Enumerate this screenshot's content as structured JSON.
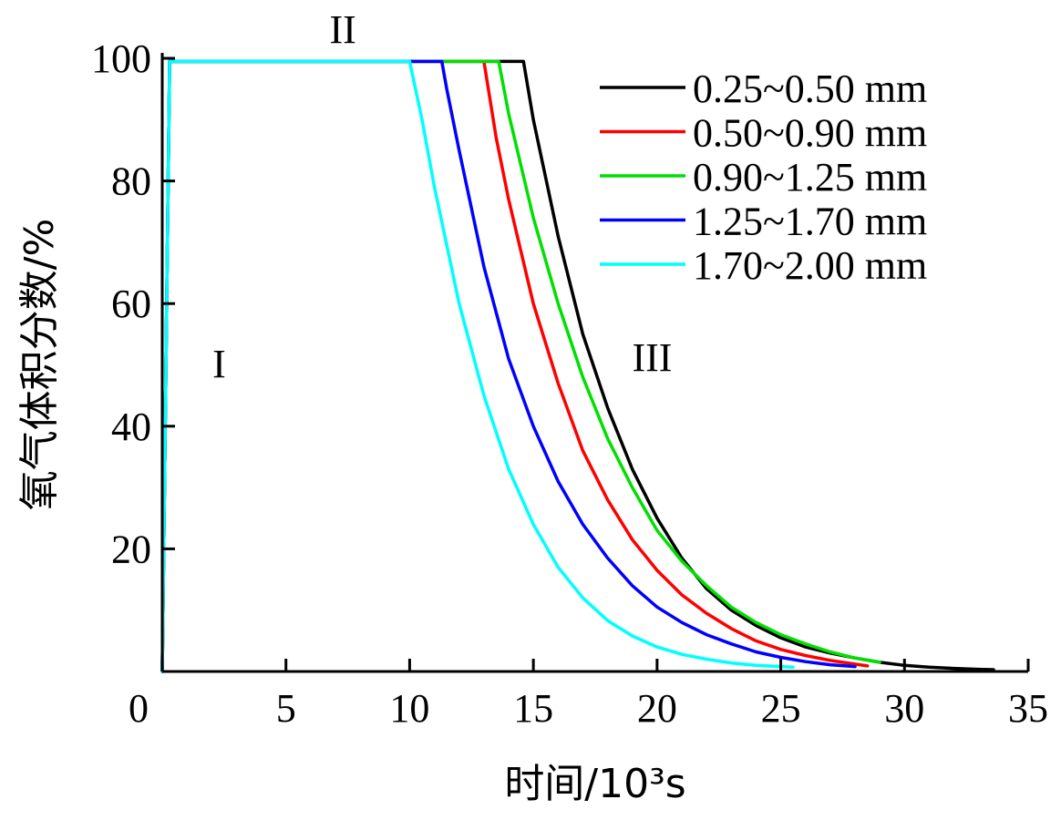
{
  "chart_data": {
    "type": "line",
    "xlabel": "时间/10³s",
    "ylabel": "氧气体积分数/%",
    "xlim": [
      0,
      35
    ],
    "ylim": [
      0,
      100
    ],
    "xticks": [
      0,
      5,
      10,
      15,
      20,
      25,
      30,
      35
    ],
    "yticks": [
      20,
      40,
      60,
      80,
      100
    ],
    "grid": false,
    "legend_position": "top-right",
    "annotations": [
      {
        "text": "I",
        "x": 2.3,
        "y": 48
      },
      {
        "text": "II",
        "x": 7.3,
        "y": 102.5
      },
      {
        "text": "III",
        "x": 19.8,
        "y": 49
      }
    ],
    "series": [
      {
        "name": "0.25~0.50 mm",
        "color": "#000000",
        "points": [
          [
            0,
            0
          ],
          [
            0.3,
            99.5
          ],
          [
            14.6,
            99.5
          ],
          [
            15,
            90
          ],
          [
            16,
            71
          ],
          [
            17,
            55
          ],
          [
            18,
            43
          ],
          [
            19,
            33
          ],
          [
            20,
            25
          ],
          [
            21,
            18.5
          ],
          [
            22,
            13.5
          ],
          [
            23,
            10
          ],
          [
            24,
            7.5
          ],
          [
            25,
            5.5
          ],
          [
            26,
            4
          ],
          [
            27,
            3
          ],
          [
            28,
            2.2
          ],
          [
            29,
            1.5
          ],
          [
            30,
            1
          ],
          [
            31,
            0.7
          ],
          [
            32,
            0.5
          ],
          [
            33,
            0.35
          ],
          [
            33.6,
            0.3
          ]
        ]
      },
      {
        "name": "0.50~0.90 mm",
        "color": "#ff0000",
        "points": [
          [
            0,
            0
          ],
          [
            0.3,
            99.5
          ],
          [
            13.0,
            99.5
          ],
          [
            13.5,
            87
          ],
          [
            14,
            77
          ],
          [
            15,
            60
          ],
          [
            16,
            47
          ],
          [
            17,
            36
          ],
          [
            18,
            28
          ],
          [
            19,
            21.5
          ],
          [
            20,
            16.5
          ],
          [
            21,
            12.5
          ],
          [
            22,
            9.5
          ],
          [
            23,
            7
          ],
          [
            24,
            5
          ],
          [
            25,
            3.6
          ],
          [
            26,
            2.6
          ],
          [
            27,
            1.8
          ],
          [
            28,
            1.2
          ],
          [
            28.5,
            0.9
          ]
        ]
      },
      {
        "name": "0.90~1.25 mm",
        "color": "#00e000",
        "points": [
          [
            0,
            0
          ],
          [
            0.3,
            99.5
          ],
          [
            13.6,
            99.5
          ],
          [
            14,
            91
          ],
          [
            15,
            74
          ],
          [
            16,
            60
          ],
          [
            17,
            48
          ],
          [
            18,
            38
          ],
          [
            19,
            30
          ],
          [
            20,
            23
          ],
          [
            21,
            18
          ],
          [
            22,
            14
          ],
          [
            23,
            10.5
          ],
          [
            24,
            8
          ],
          [
            25,
            6
          ],
          [
            26,
            4.5
          ],
          [
            27,
            3.2
          ],
          [
            28,
            2.2
          ],
          [
            29,
            1.5
          ]
        ]
      },
      {
        "name": "1.25~1.70 mm",
        "color": "#0000ff",
        "points": [
          [
            0,
            0
          ],
          [
            0.3,
            99.5
          ],
          [
            10.2,
            99.5
          ],
          [
            11.3,
            99.5
          ],
          [
            11.5,
            95
          ],
          [
            12,
            85
          ],
          [
            13,
            66
          ],
          [
            14,
            51
          ],
          [
            15,
            40
          ],
          [
            16,
            31
          ],
          [
            17,
            24
          ],
          [
            18,
            18.5
          ],
          [
            19,
            14
          ],
          [
            20,
            10.5
          ],
          [
            21,
            8
          ],
          [
            22,
            6
          ],
          [
            23,
            4.5
          ],
          [
            24,
            3.2
          ],
          [
            25,
            2.3
          ],
          [
            26,
            1.6
          ],
          [
            27,
            1.1
          ],
          [
            28,
            0.8
          ]
        ]
      },
      {
        "name": "1.70~2.00 mm",
        "color": "#00ffff",
        "points": [
          [
            0,
            0
          ],
          [
            0.3,
            99.5
          ],
          [
            10.0,
            99.5
          ],
          [
            10.5,
            90
          ],
          [
            11,
            79
          ],
          [
            12,
            60
          ],
          [
            13,
            45
          ],
          [
            14,
            33
          ],
          [
            15,
            24
          ],
          [
            16,
            17
          ],
          [
            17,
            12
          ],
          [
            18,
            8.3
          ],
          [
            19,
            5.8
          ],
          [
            20,
            4
          ],
          [
            21,
            2.8
          ],
          [
            22,
            2
          ],
          [
            23,
            1.4
          ],
          [
            24,
            1
          ],
          [
            25,
            0.8
          ],
          [
            25.5,
            0.7
          ]
        ]
      }
    ]
  }
}
